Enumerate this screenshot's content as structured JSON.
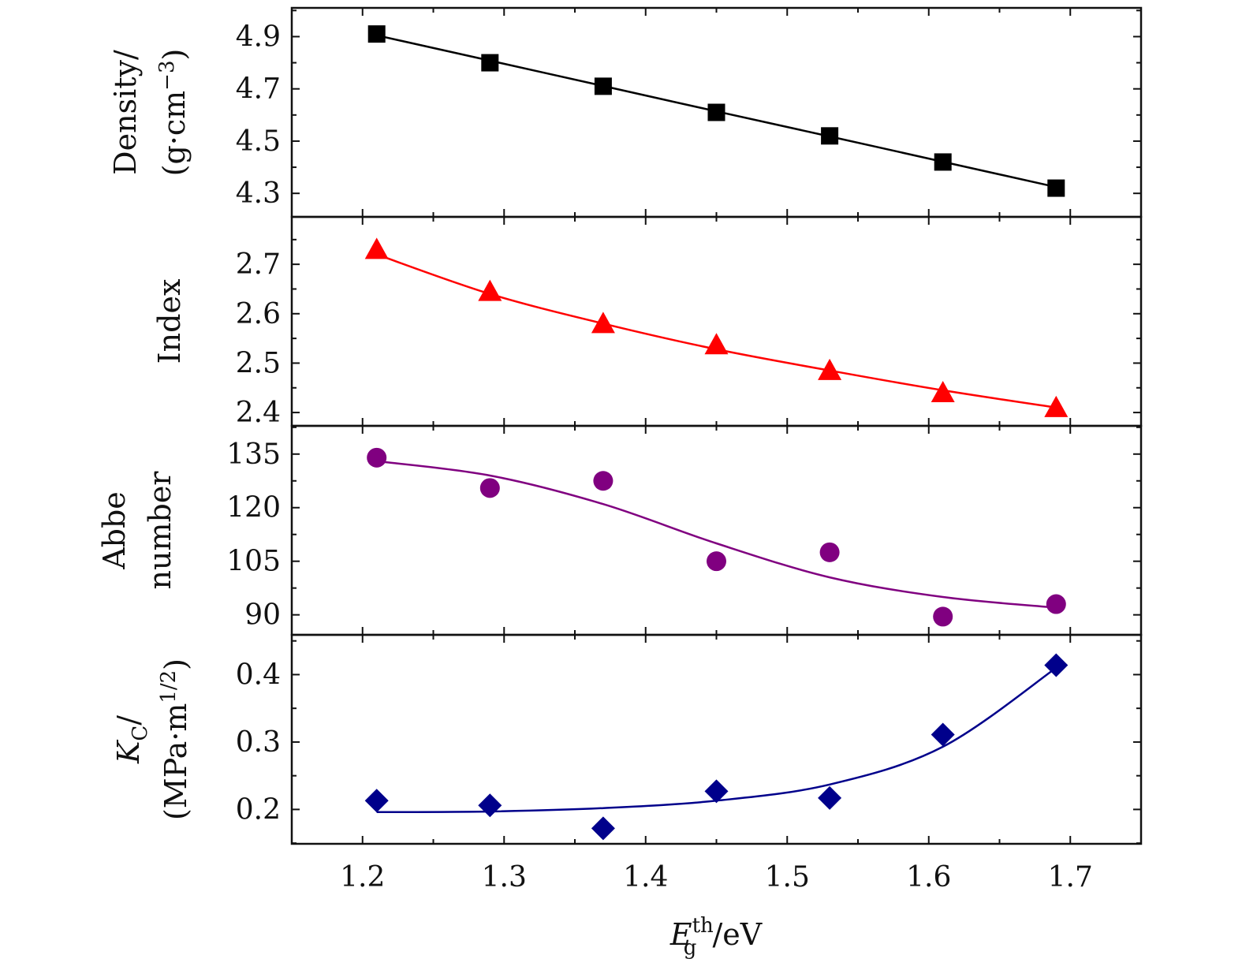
{
  "chart_data": {
    "type": "scatter",
    "x": [
      1.21,
      1.29,
      1.37,
      1.45,
      1.53,
      1.61,
      1.69
    ],
    "xlim": [
      1.15,
      1.75
    ],
    "xticks": [
      1.2,
      1.3,
      1.4,
      1.5,
      1.6,
      1.7
    ],
    "xtick_labels": [
      "1.2",
      "1.3",
      "1.4",
      "1.5",
      "1.6",
      "1.7"
    ],
    "xlabel": {
      "main": "E",
      "sup": "th",
      "sub": "g",
      "unit": "/eV"
    },
    "panels": [
      {
        "name": "density",
        "ylabel": [
          "Density/",
          "(g·cm",
          "−3",
          ")"
        ],
        "ylim": [
          4.21,
          5.01
        ],
        "yticks": [
          4.3,
          4.5,
          4.7,
          4.9
        ],
        "ytick_labels": [
          "4.3",
          "4.5",
          "4.7",
          "4.9"
        ],
        "values": [
          4.91,
          4.8,
          4.71,
          4.61,
          4.52,
          4.42,
          4.32
        ],
        "fit": [
          4.905,
          4.808,
          4.711,
          4.614,
          4.518,
          4.421,
          4.324
        ],
        "marker": "square",
        "color": "#000000"
      },
      {
        "name": "index",
        "ylabel": [
          "Index"
        ],
        "ylim": [
          2.373,
          2.796
        ],
        "yticks": [
          2.4,
          2.5,
          2.6,
          2.7
        ],
        "ytick_labels": [
          "2.4",
          "2.5",
          "2.6",
          "2.7"
        ],
        "values": [
          2.73,
          2.645,
          2.58,
          2.537,
          2.485,
          2.44,
          2.41
        ],
        "fit": [
          2.72,
          2.64,
          2.58,
          2.528,
          2.485,
          2.445,
          2.41
        ],
        "marker": "triangle",
        "color": "#ff0000"
      },
      {
        "name": "abbe",
        "ylabel": [
          "Abbe",
          "number"
        ],
        "ylim": [
          84.4,
          142.9
        ],
        "yticks": [
          90,
          105,
          120,
          135
        ],
        "ytick_labels": [
          "90",
          "105",
          "120",
          "135"
        ],
        "values": [
          134,
          125.5,
          127.5,
          105,
          107.5,
          89.5,
          93
        ],
        "fit": [
          133,
          129,
          121,
          110,
          100.5,
          95,
          92
        ],
        "marker": "circle",
        "color": "#800080"
      },
      {
        "name": "kc",
        "ylabel": [
          "K",
          "C",
          "/",
          "(MPa·m",
          "1/2",
          ")"
        ],
        "ylim": [
          0.149,
          0.459
        ],
        "yticks": [
          0.2,
          0.3,
          0.4
        ],
        "ytick_labels": [
          "0.2",
          "0.3",
          "0.4"
        ],
        "values": [
          0.213,
          0.206,
          0.172,
          0.227,
          0.217,
          0.311,
          0.414
        ],
        "fit": [
          0.196,
          0.197,
          0.202,
          0.213,
          0.237,
          0.293,
          0.41
        ],
        "marker": "diamond",
        "color": "#00008b"
      }
    ]
  }
}
